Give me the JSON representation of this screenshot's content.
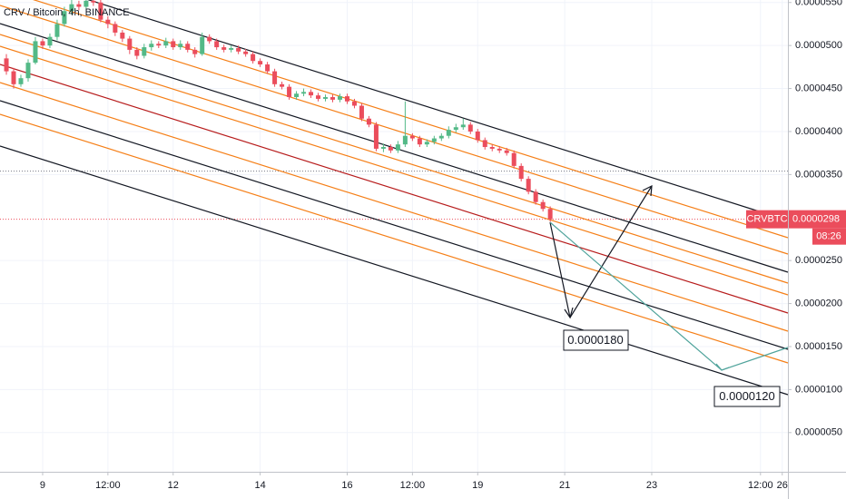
{
  "chart_data": {
    "type": "candlestick",
    "title": "CRV / Bitcoin, 4h, BINANCE",
    "symbol": "CRVBTC",
    "countdown": "08:26",
    "last_price": {
      "value": 2.98e-05,
      "label": "0.0000298"
    },
    "reference_line": 3.54e-05,
    "annotations": [
      {
        "label": "0.0000180",
        "value": 1.8e-05
      },
      {
        "label": "0.0000120",
        "value": 1.2e-05
      }
    ],
    "up_color": "#53b987",
    "down_color": "#eb4d5c",
    "grid": true,
    "xlim": [
      8.02,
      26.13
    ],
    "ylim": [
      9.7e-07,
      5.529e-05
    ],
    "xticks": [
      {
        "value": 9,
        "label": "9"
      },
      {
        "value": 10.5,
        "label": "12:00"
      },
      {
        "value": 12,
        "label": "12"
      },
      {
        "value": 14,
        "label": "14"
      },
      {
        "value": 16,
        "label": "16"
      },
      {
        "value": 17.5,
        "label": "12:00"
      },
      {
        "value": 19,
        "label": "19"
      },
      {
        "value": 21,
        "label": "21"
      },
      {
        "value": 23,
        "label": "23"
      },
      {
        "value": 25.5,
        "label": "12:00"
      },
      {
        "value": 26,
        "label": "26"
      }
    ],
    "yticks": [
      {
        "value": 5.5e-05,
        "label": "0.0000550"
      },
      {
        "value": 5e-05,
        "label": "0.0000500"
      },
      {
        "value": 4.5e-05,
        "label": "0.0000450"
      },
      {
        "value": 4e-05,
        "label": "0.0000400"
      },
      {
        "value": 3.5e-05,
        "label": "0.0000350"
      },
      {
        "value": 2.5e-05,
        "label": "0.0000250"
      },
      {
        "value": 2e-05,
        "label": "0.0000200"
      },
      {
        "value": 1.5e-05,
        "label": "0.0000150"
      },
      {
        "value": 1e-05,
        "label": "0.0000100"
      },
      {
        "value": 5e-06,
        "label": "0.0000050"
      }
    ],
    "x": [
      8.1667,
      8.3333,
      8.5,
      8.6667,
      8.8333,
      9,
      9.1667,
      9.3333,
      9.5,
      9.6667,
      9.8333,
      10,
      10.1667,
      10.3333,
      10.5,
      10.6667,
      10.8333,
      11,
      11.1667,
      11.3333,
      11.5,
      11.6667,
      11.8333,
      12,
      12.1667,
      12.3333,
      12.5,
      12.6667,
      12.8333,
      13,
      13.1667,
      13.3333,
      13.5,
      13.6667,
      13.8333,
      14,
      14.1667,
      14.3333,
      14.5,
      14.6667,
      14.8333,
      15,
      15.1667,
      15.3333,
      15.5,
      15.6667,
      15.8333,
      16,
      16.1667,
      16.3333,
      16.5,
      16.6667,
      16.8333,
      17,
      17.1667,
      17.3333,
      17.5,
      17.6667,
      17.8333,
      18,
      18.1667,
      18.3333,
      18.5,
      18.6667,
      18.8333,
      19,
      19.1667,
      19.3333,
      19.5,
      19.6667,
      19.8333,
      20,
      20.1667,
      20.3333,
      20.5,
      20.6667
    ],
    "open": [
      4.85e-05,
      4.7e-05,
      4.55e-05,
      4.62e-05,
      4.8e-05,
      5.05e-05,
      5e-05,
      5.1e-05,
      5.25e-05,
      5.4e-05,
      5.48e-05,
      5.45e-05,
      5.52e-05,
      5.5e-05,
      5.3e-05,
      5.25e-05,
      5.15e-05,
      5.08e-05,
      4.95e-05,
      4.88e-05,
      4.98e-05,
      5.02e-05,
      5e-05,
      5.05e-05,
      4.98e-05,
      5.02e-05,
      4.95e-05,
      4.9e-05,
      5.1e-05,
      5.05e-05,
      4.98e-05,
      4.95e-05,
      4.97e-05,
      4.93e-05,
      4.9e-05,
      4.82e-05,
      4.78e-05,
      4.7e-05,
      4.55e-05,
      4.52e-05,
      4.4e-05,
      4.44e-05,
      4.46e-05,
      4.42e-05,
      4.38e-05,
      4.4e-05,
      4.37e-05,
      4.41e-05,
      4.35e-05,
      4.3e-05,
      4.15e-05,
      4.08e-05,
      3.8e-05,
      3.82e-05,
      3.78e-05,
      3.85e-05,
      3.95e-05,
      3.92e-05,
      3.85e-05,
      3.88e-05,
      3.92e-05,
      3.95e-05,
      4.02e-05,
      4.05e-05,
      4.08e-05,
      4e-05,
      3.9e-05,
      3.82e-05,
      3.8e-05,
      3.78e-05,
      3.75e-05,
      3.6e-05,
      3.45e-05,
      3.3e-05,
      3.18e-05,
      3.1e-05
    ],
    "high": [
      4.9e-05,
      4.74e-05,
      4.66e-05,
      4.84e-05,
      5.1e-05,
      5.08e-05,
      5.14e-05,
      5.3e-05,
      5.45e-05,
      5.53e-05,
      5.52e-05,
      5.56e-05,
      5.56e-05,
      5.53e-05,
      5.34e-05,
      5.28e-05,
      5.18e-05,
      5.11e-05,
      4.98e-05,
      5.02e-05,
      5.06e-05,
      5.05e-05,
      5.09e-05,
      5.08e-05,
      5.06e-05,
      5.05e-05,
      4.98e-05,
      5.15e-05,
      5.13e-05,
      5.08e-05,
      5.01e-05,
      5e-05,
      5e-05,
      4.96e-05,
      4.93e-05,
      4.85e-05,
      4.81e-05,
      4.73e-05,
      4.58e-05,
      4.55e-05,
      4.47e-05,
      4.5e-05,
      4.49e-05,
      4.45e-05,
      4.43e-05,
      4.43e-05,
      4.44e-05,
      4.44e-05,
      4.38e-05,
      4.33e-05,
      4.18e-05,
      4.11e-05,
      3.86e-05,
      3.85e-05,
      3.89e-05,
      4.35e-05,
      3.98e-05,
      3.95e-05,
      3.91e-05,
      3.95e-05,
      3.98e-05,
      4.06e-05,
      4.09e-05,
      4.15e-05,
      4.11e-05,
      4.03e-05,
      3.93e-05,
      3.85e-05,
      3.83e-05,
      3.81e-05,
      3.78e-05,
      3.63e-05,
      3.48e-05,
      3.33e-05,
      3.21e-05,
      3.13e-05
    ],
    "low": [
      4.66e-05,
      4.5e-05,
      4.52e-05,
      4.58e-05,
      4.78e-05,
      4.96e-05,
      4.97e-05,
      5.06e-05,
      5.22e-05,
      5.36e-05,
      5.41e-05,
      5.42e-05,
      5.46e-05,
      5.27e-05,
      5.2e-05,
      5.11e-05,
      5.04e-05,
      4.9e-05,
      4.84e-05,
      4.85e-05,
      4.94e-05,
      4.97e-05,
      4.97e-05,
      4.95e-05,
      4.95e-05,
      4.92e-05,
      4.86e-05,
      4.88e-05,
      5.02e-05,
      4.95e-05,
      4.92e-05,
      4.92e-05,
      4.9e-05,
      4.87e-05,
      4.79e-05,
      4.75e-05,
      4.67e-05,
      4.52e-05,
      4.49e-05,
      4.37e-05,
      4.37e-05,
      4.41e-05,
      4.39e-05,
      4.35e-05,
      4.35e-05,
      4.34e-05,
      4.34e-05,
      4.32e-05,
      4.27e-05,
      4.12e-05,
      4.05e-05,
      3.77e-05,
      3.76e-05,
      3.75e-05,
      3.75e-05,
      3.82e-05,
      3.89e-05,
      3.82e-05,
      3.82e-05,
      3.85e-05,
      3.89e-05,
      3.92e-05,
      3.99e-05,
      4.02e-05,
      3.97e-05,
      3.87e-05,
      3.79e-05,
      3.77e-05,
      3.75e-05,
      3.72e-05,
      3.57e-05,
      3.42e-05,
      3.27e-05,
      3.15e-05,
      3.07e-05,
      2.95e-05
    ],
    "close": [
      4.7e-05,
      4.55e-05,
      4.62e-05,
      4.8e-05,
      5.05e-05,
      5e-05,
      5.1e-05,
      5.25e-05,
      5.4e-05,
      5.48e-05,
      5.45e-05,
      5.52e-05,
      5.5e-05,
      5.3e-05,
      5.25e-05,
      5.15e-05,
      5.08e-05,
      4.95e-05,
      4.88e-05,
      4.98e-05,
      5.02e-05,
      5e-05,
      5.05e-05,
      4.98e-05,
      5.02e-05,
      4.95e-05,
      4.9e-05,
      5.1e-05,
      5.05e-05,
      4.98e-05,
      4.95e-05,
      4.97e-05,
      4.93e-05,
      4.9e-05,
      4.82e-05,
      4.78e-05,
      4.7e-05,
      4.55e-05,
      4.52e-05,
      4.4e-05,
      4.44e-05,
      4.46e-05,
      4.42e-05,
      4.38e-05,
      4.4e-05,
      4.37e-05,
      4.41e-05,
      4.35e-05,
      4.3e-05,
      4.15e-05,
      4.08e-05,
      3.8e-05,
      3.82e-05,
      3.78e-05,
      3.85e-05,
      3.95e-05,
      3.92e-05,
      3.85e-05,
      3.88e-05,
      3.92e-05,
      3.95e-05,
      4.02e-05,
      4.05e-05,
      4.08e-05,
      4e-05,
      3.9e-05,
      3.82e-05,
      3.8e-05,
      3.78e-05,
      3.75e-05,
      3.6e-05,
      3.45e-05,
      3.3e-05,
      3.18e-05,
      3.1e-05,
      2.98e-05
    ]
  }
}
